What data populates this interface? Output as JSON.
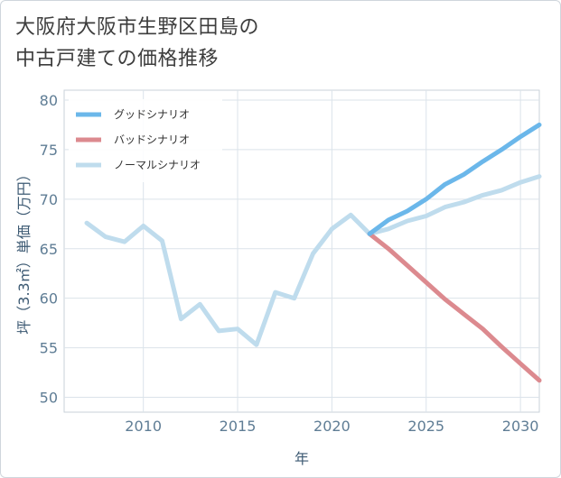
{
  "title": {
    "line1": "大阪府大阪市生野区田島の",
    "line2": "中古戸建ての価格推移"
  },
  "chart_data": {
    "type": "line",
    "xlabel": "年",
    "ylabel": "坪（3.3㎡）単価（万円）",
    "xlim": [
      2005.8,
      2031
    ],
    "ylim": [
      48.5,
      81
    ],
    "xticks": [
      2010,
      2015,
      2020,
      2025,
      2030
    ],
    "yticks": [
      50,
      55,
      60,
      65,
      70,
      75,
      80
    ],
    "legend_position": "top-left",
    "series": [
      {
        "name": "グッドシナリオ",
        "color": "#6bb7ea",
        "x": [
          2022,
          2023,
          2024,
          2025,
          2026,
          2027,
          2028,
          2029,
          2030,
          2031
        ],
        "y": [
          66.5,
          67.9,
          68.8,
          70.0,
          71.5,
          72.5,
          73.8,
          75.0,
          76.3,
          77.5
        ]
      },
      {
        "name": "バッドシナリオ",
        "color": "#dc8a8f",
        "x": [
          2022,
          2023,
          2024,
          2025,
          2026,
          2027,
          2028,
          2029,
          2030,
          2031
        ],
        "y": [
          66.5,
          65.0,
          63.3,
          61.6,
          59.9,
          58.4,
          56.9,
          55.1,
          53.4,
          51.7
        ]
      },
      {
        "name": "ノーマルシナリオ",
        "color": "#bfdced",
        "x": [
          2007,
          2008,
          2009,
          2010,
          2011,
          2012,
          2013,
          2014,
          2015,
          2016,
          2017,
          2018,
          2019,
          2020,
          2021,
          2022,
          2023,
          2024,
          2025,
          2026,
          2027,
          2028,
          2029,
          2030,
          2031
        ],
        "y": [
          67.6,
          66.2,
          65.7,
          67.3,
          65.8,
          57.9,
          59.4,
          56.7,
          56.9,
          55.3,
          60.6,
          60.0,
          64.5,
          67.0,
          68.4,
          66.5,
          67.0,
          67.8,
          68.3,
          69.2,
          69.7,
          70.4,
          70.9,
          71.7,
          72.3
        ]
      }
    ]
  }
}
